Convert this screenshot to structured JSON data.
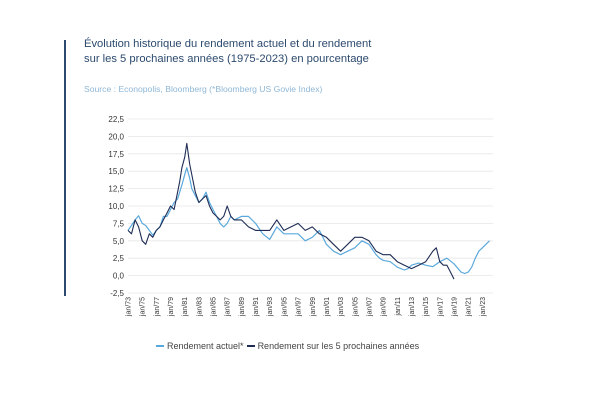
{
  "header": {
    "title_line1": "Évolution historique du rendement actuel et du rendement",
    "title_line2": "sur les 5 prochaines années (1975-2023) en pourcentage",
    "source": "Source : Econopolis, Bloomberg (*Bloomberg US Govie Index)"
  },
  "colors": {
    "current": "#5ba9dc",
    "future": "#1f2d55",
    "title": "#2c4a6e",
    "grid": "#e6e6e6"
  },
  "chart_data": {
    "type": "line",
    "ylim": [
      -2.5,
      22.5
    ],
    "yticks": [
      "-2,5",
      "0,0",
      "2,5",
      "5,0",
      "7,5",
      "10,0",
      "12,5",
      "15,0",
      "17,5",
      "20,0",
      "22,5"
    ],
    "ytick_values": [
      -2.5,
      0,
      2.5,
      5,
      7.5,
      10,
      12.5,
      15,
      17.5,
      20,
      22.5
    ],
    "xlim": [
      1973,
      2024.5
    ],
    "xticks": [
      "jan/73",
      "jan/75",
      "jan/77",
      "jan/79",
      "jan/81",
      "jan/83",
      "jan/85",
      "jan/87",
      "jan/89",
      "jan/91",
      "jan/93",
      "jan/95",
      "jan/97",
      "jan/99",
      "jan/01",
      "jan/03",
      "jan/05",
      "jan/07",
      "jan/09",
      "jan/11",
      "jan/13",
      "jan/15",
      "jan/17",
      "jan/19",
      "jan/21",
      "jan/23"
    ],
    "xtick_values": [
      1973,
      1975,
      1977,
      1979,
      1981,
      1983,
      1985,
      1987,
      1989,
      1991,
      1993,
      1995,
      1997,
      1999,
      2001,
      2003,
      2005,
      2007,
      2009,
      2011,
      2013,
      2015,
      2017,
      2019,
      2021,
      2023
    ],
    "grid": "horizontal",
    "legend_position": "bottom",
    "series": [
      {
        "name": "Rendement actuel*",
        "color": "#5ba9dc",
        "x": [
          1973,
          1973.5,
          1974,
          1974.5,
          1975,
          1975.5,
          1976,
          1976.5,
          1977,
          1977.5,
          1978,
          1978.5,
          1979,
          1979.5,
          1980,
          1980.3,
          1980.6,
          1981,
          1981.3,
          1981.7,
          1982,
          1982.5,
          1983,
          1983.5,
          1984,
          1984.5,
          1985,
          1985.5,
          1986,
          1986.5,
          1987,
          1987.5,
          1988,
          1989,
          1990,
          1991,
          1992,
          1993,
          1994,
          1995,
          1996,
          1997,
          1998,
          1999,
          2000,
          2001,
          2002,
          2003,
          2004,
          2005,
          2006,
          2007,
          2008,
          2008.5,
          2009,
          2010,
          2011,
          2012,
          2012.5,
          2013,
          2014,
          2015,
          2016,
          2017,
          2018,
          2019,
          2020,
          2020.5,
          2021,
          2021.5,
          2022,
          2022.5,
          2023,
          2023.5,
          2024
        ],
        "y": [
          6.5,
          7.2,
          8.0,
          8.6,
          7.5,
          7.2,
          6.5,
          5.8,
          6.5,
          7.0,
          8.5,
          8.5,
          9.5,
          10.5,
          11.0,
          12.0,
          13.0,
          14.5,
          15.5,
          14.0,
          12.5,
          11.5,
          10.5,
          11.0,
          12.0,
          10.5,
          9.5,
          8.5,
          7.5,
          7.0,
          7.5,
          8.5,
          8.0,
          8.5,
          8.5,
          7.5,
          6.0,
          5.2,
          7.0,
          6.0,
          6.0,
          6.0,
          5.0,
          5.5,
          6.5,
          4.5,
          3.5,
          3.0,
          3.5,
          4.0,
          5.0,
          4.5,
          3.0,
          2.5,
          2.2,
          2.0,
          1.2,
          0.8,
          1.0,
          1.5,
          1.8,
          1.5,
          1.3,
          2.0,
          2.5,
          1.7,
          0.5,
          0.3,
          0.5,
          1.2,
          2.5,
          3.5,
          4.0,
          4.5,
          5.0
        ]
      },
      {
        "name": "Rendement sur les 5 prochaines années",
        "color": "#1f2d55",
        "x": [
          1973,
          1973.5,
          1974,
          1974.5,
          1975,
          1975.5,
          1976,
          1976.5,
          1977,
          1977.5,
          1978,
          1978.5,
          1979,
          1979.5,
          1980,
          1980.3,
          1980.6,
          1981,
          1981.3,
          1981.7,
          1982,
          1982.5,
          1983,
          1983.5,
          1984,
          1984.5,
          1985,
          1985.5,
          1986,
          1986.5,
          1987,
          1987.5,
          1988,
          1989,
          1990,
          1991,
          1992,
          1993,
          1994,
          1995,
          1996,
          1997,
          1998,
          1999,
          2000,
          2001,
          2002,
          2003,
          2004,
          2005,
          2006,
          2007,
          2008,
          2009,
          2010,
          2011,
          2012,
          2013,
          2014,
          2015,
          2016,
          2016.5,
          2017,
          2017.5,
          2018,
          2018.5,
          2019
        ],
        "y": [
          6.5,
          6.0,
          8.0,
          7.0,
          5.0,
          4.5,
          6.0,
          5.5,
          6.5,
          7.0,
          8.0,
          9.0,
          10.0,
          9.5,
          12.0,
          13.5,
          15.5,
          17.0,
          19.0,
          16.0,
          14.5,
          12.0,
          10.5,
          11.0,
          11.5,
          10.0,
          9.0,
          8.5,
          8.0,
          8.5,
          10.0,
          8.5,
          8.0,
          8.0,
          7.0,
          6.5,
          6.5,
          6.5,
          8.0,
          6.5,
          7.0,
          7.5,
          6.5,
          7.0,
          6.0,
          5.5,
          4.5,
          3.5,
          4.5,
          5.5,
          5.5,
          5.0,
          3.5,
          3.0,
          3.0,
          2.0,
          1.5,
          1.0,
          1.5,
          2.0,
          3.5,
          4.0,
          2.0,
          1.5,
          1.5,
          0.5,
          -0.5
        ]
      }
    ]
  }
}
